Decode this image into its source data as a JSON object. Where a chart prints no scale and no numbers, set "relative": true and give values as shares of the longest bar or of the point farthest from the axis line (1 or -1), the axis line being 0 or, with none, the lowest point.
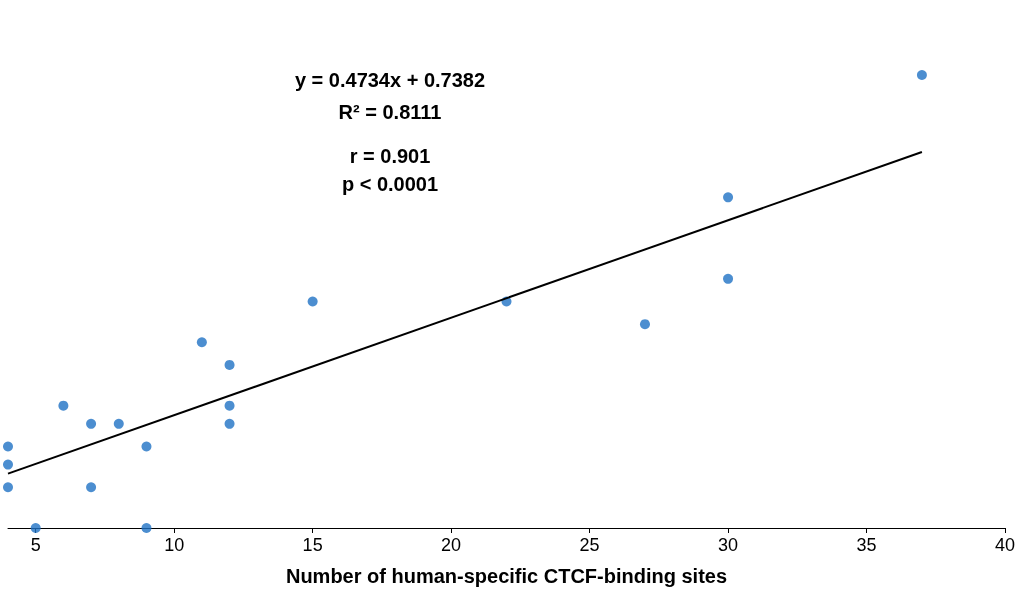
{
  "chart_data": {
    "type": "scatter",
    "xlabel": "Number of human-specific CTCF-binding sites",
    "relative": true,
    "xlim": [
      4,
      40
    ],
    "xticks": [
      5,
      10,
      15,
      20,
      25,
      30,
      35,
      40
    ],
    "grid": false,
    "marker": "circle",
    "annotations": [
      "y = 0.4734x + 0.7382",
      "R² = 0.8111",
      "r = 0.901",
      "p < 0.0001"
    ],
    "series": [
      {
        "type": "scatter",
        "color": "#1f72c4",
        "x": [
          4,
          4,
          4,
          5,
          6,
          7,
          7,
          8,
          9,
          9,
          11,
          12,
          12,
          12,
          15,
          22,
          27,
          30,
          30,
          37
        ],
        "values": [
          0.18,
          0.14,
          0.09,
          0,
          0.27,
          0.23,
          0.09,
          0.23,
          0.18,
          0,
          0.41,
          0.36,
          0.27,
          0.23,
          0.5,
          0.5,
          0.45,
          0.73,
          0.55,
          1
        ]
      },
      {
        "type": "line",
        "color": "#000000",
        "marker": "none",
        "x": [
          4,
          37
        ],
        "values": [
          0.12,
          0.83
        ]
      }
    ]
  }
}
